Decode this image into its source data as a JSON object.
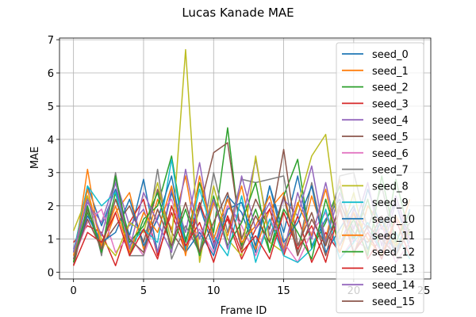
{
  "chart_data": {
    "type": "line",
    "title": "Lucas Kanade MAE",
    "xlabel": "Frame ID",
    "ylabel": "MAE",
    "xlim": [
      -1,
      25.5
    ],
    "ylim": [
      -0.2,
      7.05
    ],
    "xticks": [
      0,
      5,
      10,
      15,
      20,
      25
    ],
    "yticks": [
      0,
      1,
      2,
      3,
      4,
      5,
      6,
      7
    ],
    "grid": true,
    "legend_position": "right",
    "x": [
      0,
      1,
      2,
      3,
      4,
      5,
      6,
      7,
      8,
      9,
      10,
      11,
      12,
      13,
      14,
      15,
      16,
      17,
      18,
      19,
      20,
      21,
      22,
      23,
      24
    ],
    "series": [
      {
        "name": "seed_0",
        "color": "#1f77b4",
        "values": [
          0.6,
          2.6,
          1.4,
          2.5,
          1.1,
          2.8,
          0.6,
          2.4,
          1.0,
          2.0,
          0.7,
          2.3,
          1.8,
          0.6,
          2.6,
          1.2,
          2.9,
          0.8,
          1.6,
          2.2,
          0.9,
          2.5,
          1.3,
          2.1,
          0.7
        ]
      },
      {
        "name": "seed_1",
        "color": "#ff7f0e",
        "values": [
          0.3,
          3.1,
          0.6,
          1.8,
          2.4,
          0.7,
          2.2,
          1.3,
          2.9,
          0.5,
          2.1,
          1.1,
          2.6,
          0.7,
          1.9,
          2.4,
          0.6,
          2.3,
          1.0,
          2.8,
          0.5,
          2.0,
          1.4,
          0.8,
          2.2
        ]
      },
      {
        "name": "seed_2",
        "color": "#2ca02c",
        "values": [
          0.5,
          1.8,
          0.7,
          2.4,
          0.5,
          1.6,
          2.0,
          3.5,
          0.9,
          2.7,
          1.2,
          4.35,
          0.8,
          1.9,
          0.6,
          2.3,
          3.4,
          0.7,
          1.5,
          2.6,
          1.0,
          2.2,
          0.5,
          2.8,
          1.1
        ]
      },
      {
        "name": "seed_3",
        "color": "#d62728",
        "values": [
          0.9,
          1.4,
          1.2,
          0.2,
          1.5,
          2.2,
          0.5,
          1.8,
          0.6,
          2.1,
          0.9,
          1.6,
          0.4,
          1.3,
          1.9,
          0.5,
          1.7,
          0.3,
          1.2,
          0.6,
          1.8,
          0.4,
          1.1,
          0.7,
          1.5
        ]
      },
      {
        "name": "seed_4",
        "color": "#9467bd",
        "values": [
          0.7,
          2.1,
          1.5,
          2.8,
          1.4,
          1.9,
          0.6,
          2.5,
          1.2,
          3.3,
          0.8,
          2.0,
          1.5,
          3.4,
          1.1,
          2.2,
          1.7,
          3.2,
          0.9,
          2.4,
          1.3,
          2.7,
          0.8,
          2.3,
          1.0
        ]
      },
      {
        "name": "seed_5",
        "color": "#8c564b",
        "values": [
          0.2,
          1.9,
          0.8,
          1.4,
          2.0,
          0.9,
          2.5,
          1.2,
          0.6,
          1.9,
          3.6,
          3.9,
          1.0,
          2.2,
          1.3,
          3.7,
          0.8,
          1.8,
          0.5,
          2.1,
          1.2,
          0.9,
          1.7,
          0.6,
          1.3
        ]
      },
      {
        "name": "seed_6",
        "color": "#e377c2",
        "values": [
          0.4,
          1.5,
          1.9,
          0.6,
          1.1,
          0.5,
          1.7,
          2.2,
          0.8,
          1.3,
          0.6,
          2.0,
          1.4,
          0.5,
          1.6,
          0.9,
          0.3,
          1.2,
          1.8,
          0.4,
          1.0,
          0.7,
          1.4,
          0.3,
          0.9
        ]
      },
      {
        "name": "seed_7",
        "color": "#7f7f7f",
        "values": [
          0.3,
          2.3,
          0.5,
          3.0,
          0.5,
          0.5,
          3.1,
          0.4,
          1.4,
          0.6,
          3.0,
          1.2,
          2.8,
          2.7,
          2.8,
          2.9,
          0.6,
          2.7,
          0.8,
          2.9,
          3.0,
          1.3,
          2.6,
          0.7,
          1.5
        ]
      },
      {
        "name": "seed_8",
        "color": "#bcbd22",
        "values": [
          1.25,
          2.3,
          1.0,
          0.5,
          1.5,
          1.2,
          2.7,
          0.9,
          6.7,
          0.3,
          2.6,
          1.0,
          0.5,
          3.5,
          0.9,
          0.6,
          2.0,
          3.5,
          4.15,
          1.0,
          2.4,
          0.6,
          1.6,
          0.8,
          1.2
        ]
      },
      {
        "name": "seed_9",
        "color": "#17becf",
        "values": [
          0.6,
          2.6,
          2.0,
          2.4,
          0.8,
          1.3,
          0.9,
          3.4,
          0.7,
          2.5,
          1.1,
          0.5,
          2.3,
          0.3,
          1.6,
          0.5,
          0.3,
          0.7,
          1.9,
          0.4,
          0.9,
          1.5,
          0.6,
          1.2,
          0.4
        ]
      },
      {
        "name": "seed_10",
        "color": "#1f77b4",
        "values": [
          0.4,
          1.7,
          0.9,
          1.2,
          2.2,
          0.8,
          1.6,
          2.9,
          0.6,
          1.2,
          0.5,
          1.9,
          2.1,
          0.8,
          2.6,
          0.9,
          1.5,
          2.6,
          0.6,
          1.3,
          2.0,
          0.7,
          1.6,
          0.5,
          1.9
        ]
      },
      {
        "name": "seed_11",
        "color": "#ff7f0e",
        "values": [
          0.5,
          2.5,
          0.8,
          2.0,
          0.6,
          1.8,
          1.2,
          2.6,
          0.5,
          2.9,
          1.0,
          2.2,
          0.9,
          1.4,
          2.3,
          0.7,
          2.1,
          1.1,
          2.5,
          0.6,
          1.8,
          1.0,
          0.5,
          1.7,
          0.9
        ]
      },
      {
        "name": "seed_12",
        "color": "#2ca02c",
        "values": [
          0.3,
          2.0,
          0.6,
          2.9,
          0.9,
          1.4,
          2.4,
          0.7,
          1.9,
          0.5,
          2.3,
          0.8,
          1.5,
          2.7,
          0.6,
          1.9,
          1.2,
          0.4,
          2.2,
          0.8,
          1.6,
          0.5,
          2.9,
          0.9,
          1.8
        ]
      },
      {
        "name": "seed_13",
        "color": "#d62728",
        "values": [
          0.2,
          1.2,
          0.9,
          1.8,
          0.5,
          1.3,
          0.4,
          2.0,
          0.8,
          1.5,
          0.3,
          1.7,
          0.6,
          1.1,
          0.4,
          1.8,
          0.7,
          1.4,
          0.3,
          1.9,
          0.6,
          1.2,
          0.4,
          1.6,
          0.5
        ]
      },
      {
        "name": "seed_14",
        "color": "#9467bd",
        "values": [
          0.6,
          2.2,
          1.1,
          2.7,
          0.7,
          2.4,
          1.5,
          0.6,
          3.1,
          1.0,
          2.2,
          0.7,
          2.9,
          1.3,
          2.1,
          0.6,
          2.4,
          1.0,
          2.7,
          0.8,
          1.9,
          1.3,
          0.6,
          2.1,
          0.9
        ]
      },
      {
        "name": "seed_15",
        "color": "#8c564b",
        "values": [
          0.4,
          1.6,
          0.7,
          2.2,
          1.0,
          0.6,
          1.9,
          0.8,
          2.1,
          0.6,
          1.5,
          2.4,
          0.7,
          1.7,
          0.9,
          2.3,
          0.5,
          1.6,
          0.8,
          2.0,
          0.6,
          1.4,
          1.0,
          0.5,
          1.3
        ]
      }
    ]
  }
}
